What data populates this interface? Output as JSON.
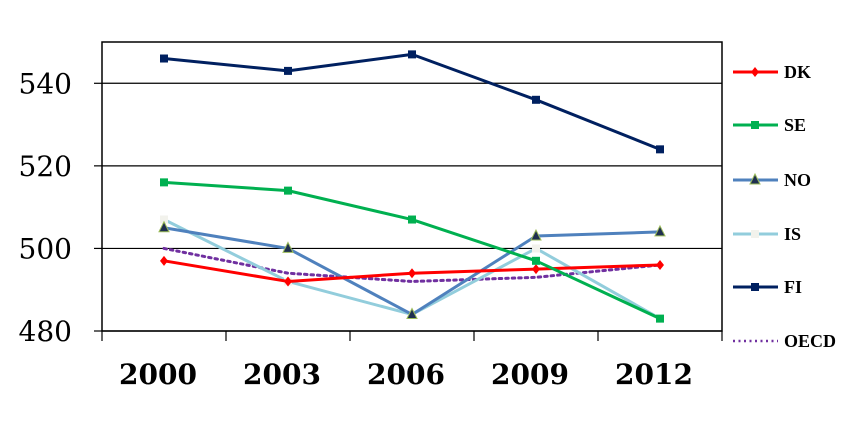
{
  "chart_data": {
    "type": "line",
    "title": "",
    "xlabel": "",
    "ylabel": "",
    "categories": [
      "2000",
      "2003",
      "2006",
      "2009",
      "2012"
    ],
    "ylim": [
      480,
      550
    ],
    "yticks": [
      480,
      500,
      520,
      540
    ],
    "grid": true,
    "legend_position": "right",
    "series": [
      {
        "name": "DK",
        "color": "#ff0000",
        "marker": "diamond",
        "dash": "solid",
        "values": [
          497,
          492,
          494,
          495,
          496
        ]
      },
      {
        "name": "SE",
        "color": "#00b050",
        "marker": "square",
        "dash": "solid",
        "values": [
          516,
          514,
          507,
          497,
          483
        ]
      },
      {
        "name": "NO",
        "color": "#4f81bd",
        "marker": "triangle",
        "dash": "solid",
        "values": [
          505,
          500,
          484,
          503,
          504
        ]
      },
      {
        "name": "IS",
        "color": "#92cddc",
        "marker": "square-light",
        "dash": "dashed",
        "values": [
          507,
          492,
          484,
          500,
          483
        ]
      },
      {
        "name": "FI",
        "color": "#002060",
        "marker": "square",
        "dash": "solid",
        "values": [
          546,
          543,
          547,
          536,
          524
        ]
      },
      {
        "name": "OECD",
        "color": "#7030a0",
        "marker": "none",
        "dash": "dotted",
        "values": [
          500,
          494,
          492,
          493,
          496
        ]
      }
    ]
  }
}
